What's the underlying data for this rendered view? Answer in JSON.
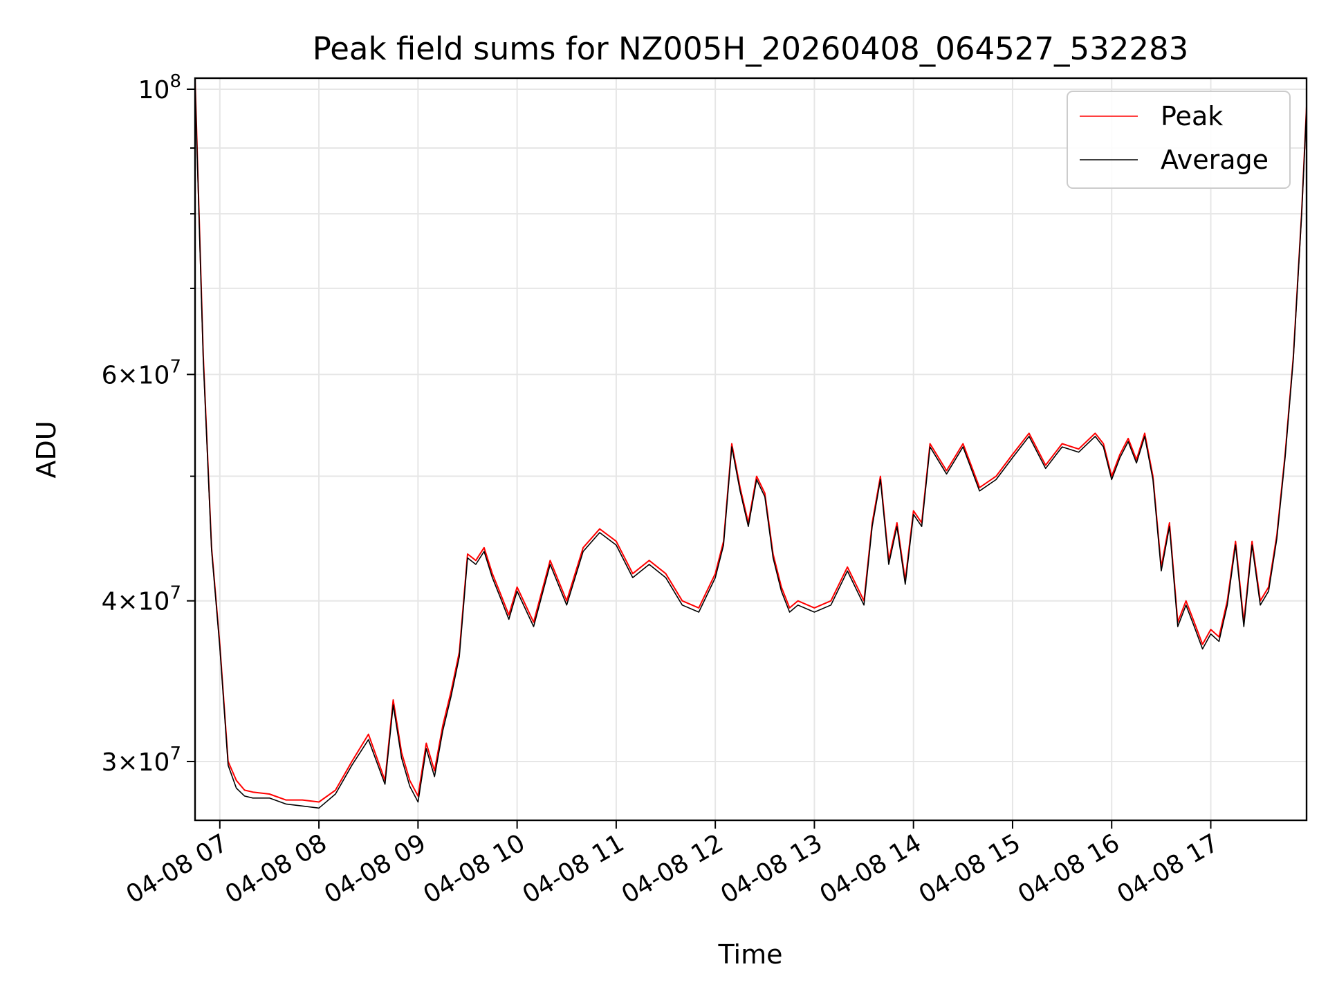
{
  "chart_data": {
    "type": "line",
    "title": "Peak field sums for NZ005H_20260408_064527_532283",
    "xlabel": "Time",
    "ylabel": "ADU",
    "yscale": "log",
    "grid": true,
    "legend_position": "top-right",
    "xlim": [
      "2026-04-08 06:45",
      "2026-04-08 17:58"
    ],
    "ylim": [
      27000000,
      102000000
    ],
    "x_ticks": [
      {
        "value": "2026-04-08 07:00",
        "label": "04-08 07"
      },
      {
        "value": "2026-04-08 08:00",
        "label": "04-08 08"
      },
      {
        "value": "2026-04-08 09:00",
        "label": "04-08 09"
      },
      {
        "value": "2026-04-08 10:00",
        "label": "04-08 10"
      },
      {
        "value": "2026-04-08 11:00",
        "label": "04-08 11"
      },
      {
        "value": "2026-04-08 12:00",
        "label": "04-08 12"
      },
      {
        "value": "2026-04-08 13:00",
        "label": "04-08 13"
      },
      {
        "value": "2026-04-08 14:00",
        "label": "04-08 14"
      },
      {
        "value": "2026-04-08 15:00",
        "label": "04-08 15"
      },
      {
        "value": "2026-04-08 16:00",
        "label": "04-08 16"
      },
      {
        "value": "2026-04-08 17:00",
        "label": "04-08 17"
      }
    ],
    "y_ticks": [
      {
        "value": 30000000,
        "base": "3",
        "exp": "7",
        "mantissa": true
      },
      {
        "value": 40000000,
        "base": "4",
        "exp": "7",
        "mantissa": true
      },
      {
        "value": 60000000,
        "base": "6",
        "exp": "7",
        "mantissa": true
      },
      {
        "value": 100000000,
        "base": "10",
        "exp": "8",
        "mantissa": false
      }
    ],
    "y_minor_ticks": [
      50000000,
      70000000,
      80000000,
      90000000
    ],
    "series": [
      {
        "name": "Peak",
        "color": "#ff0000",
        "x": [
          "2026-04-08 06:45",
          "2026-04-08 06:50",
          "2026-04-08 06:55",
          "2026-04-08 07:00",
          "2026-04-08 07:05",
          "2026-04-08 07:10",
          "2026-04-08 07:15",
          "2026-04-08 07:20",
          "2026-04-08 07:30",
          "2026-04-08 07:40",
          "2026-04-08 07:50",
          "2026-04-08 08:00",
          "2026-04-08 08:10",
          "2026-04-08 08:20",
          "2026-04-08 08:30",
          "2026-04-08 08:40",
          "2026-04-08 08:45",
          "2026-04-08 08:50",
          "2026-04-08 08:55",
          "2026-04-08 09:00",
          "2026-04-08 09:05",
          "2026-04-08 09:10",
          "2026-04-08 09:15",
          "2026-04-08 09:20",
          "2026-04-08 09:25",
          "2026-04-08 09:30",
          "2026-04-08 09:35",
          "2026-04-08 09:40",
          "2026-04-08 09:45",
          "2026-04-08 09:50",
          "2026-04-08 09:55",
          "2026-04-08 10:00",
          "2026-04-08 10:10",
          "2026-04-08 10:20",
          "2026-04-08 10:30",
          "2026-04-08 10:40",
          "2026-04-08 10:50",
          "2026-04-08 11:00",
          "2026-04-08 11:10",
          "2026-04-08 11:20",
          "2026-04-08 11:30",
          "2026-04-08 11:40",
          "2026-04-08 11:50",
          "2026-04-08 12:00",
          "2026-04-08 12:05",
          "2026-04-08 12:10",
          "2026-04-08 12:15",
          "2026-04-08 12:20",
          "2026-04-08 12:25",
          "2026-04-08 12:30",
          "2026-04-08 12:35",
          "2026-04-08 12:40",
          "2026-04-08 12:45",
          "2026-04-08 12:50",
          "2026-04-08 13:00",
          "2026-04-08 13:10",
          "2026-04-08 13:20",
          "2026-04-08 13:30",
          "2026-04-08 13:35",
          "2026-04-08 13:40",
          "2026-04-08 13:45",
          "2026-04-08 13:50",
          "2026-04-08 13:55",
          "2026-04-08 14:00",
          "2026-04-08 14:05",
          "2026-04-08 14:10",
          "2026-04-08 14:20",
          "2026-04-08 14:30",
          "2026-04-08 14:40",
          "2026-04-08 14:50",
          "2026-04-08 15:00",
          "2026-04-08 15:10",
          "2026-04-08 15:20",
          "2026-04-08 15:30",
          "2026-04-08 15:40",
          "2026-04-08 15:50",
          "2026-04-08 15:55",
          "2026-04-08 16:00",
          "2026-04-08 16:05",
          "2026-04-08 16:10",
          "2026-04-08 16:15",
          "2026-04-08 16:20",
          "2026-04-08 16:25",
          "2026-04-08 16:30",
          "2026-04-08 16:35",
          "2026-04-08 16:40",
          "2026-04-08 16:45",
          "2026-04-08 16:50",
          "2026-04-08 16:55",
          "2026-04-08 17:00",
          "2026-04-08 17:05",
          "2026-04-08 17:10",
          "2026-04-08 17:15",
          "2026-04-08 17:20",
          "2026-04-08 17:25",
          "2026-04-08 17:30",
          "2026-04-08 17:35",
          "2026-04-08 17:40",
          "2026-04-08 17:45",
          "2026-04-08 17:50",
          "2026-04-08 17:55",
          "2026-04-08 17:58"
        ],
        "values": [
          102000000,
          62000000,
          44000000,
          37000000,
          30000000,
          29000000,
          28500000,
          28400000,
          28300000,
          28000000,
          28000000,
          27900000,
          28500000,
          30000000,
          31500000,
          29000000,
          33500000,
          30500000,
          29000000,
          28200000,
          31000000,
          29500000,
          32000000,
          34000000,
          36500000,
          43500000,
          43000000,
          44000000,
          42000000,
          40500000,
          39000000,
          41000000,
          38500000,
          43000000,
          40000000,
          44000000,
          45500000,
          44500000,
          42000000,
          43000000,
          42000000,
          40000000,
          39500000,
          42000000,
          44500000,
          53000000,
          49000000,
          46000000,
          50000000,
          48500000,
          43500000,
          41000000,
          39500000,
          40000000,
          39500000,
          40000000,
          42500000,
          40000000,
          46000000,
          50000000,
          43000000,
          46000000,
          41500000,
          47000000,
          46000000,
          53000000,
          50500000,
          53000000,
          49000000,
          50000000,
          52000000,
          54000000,
          51000000,
          53000000,
          52500000,
          54000000,
          53000000,
          50000000,
          52000000,
          53500000,
          51500000,
          54000000,
          50000000,
          42500000,
          46000000,
          38500000,
          40000000,
          38500000,
          37000000,
          38000000,
          37500000,
          40000000,
          44500000,
          38500000,
          44500000,
          40000000,
          41000000,
          45000000,
          52000000,
          62000000,
          80000000,
          97000000
        ]
      },
      {
        "name": "Average",
        "color": "#000000",
        "x": [
          "2026-04-08 06:45",
          "2026-04-08 06:50",
          "2026-04-08 06:55",
          "2026-04-08 07:00",
          "2026-04-08 07:05",
          "2026-04-08 07:10",
          "2026-04-08 07:15",
          "2026-04-08 07:20",
          "2026-04-08 07:30",
          "2026-04-08 07:40",
          "2026-04-08 07:50",
          "2026-04-08 08:00",
          "2026-04-08 08:10",
          "2026-04-08 08:20",
          "2026-04-08 08:30",
          "2026-04-08 08:40",
          "2026-04-08 08:45",
          "2026-04-08 08:50",
          "2026-04-08 08:55",
          "2026-04-08 09:00",
          "2026-04-08 09:05",
          "2026-04-08 09:10",
          "2026-04-08 09:15",
          "2026-04-08 09:20",
          "2026-04-08 09:25",
          "2026-04-08 09:30",
          "2026-04-08 09:35",
          "2026-04-08 09:40",
          "2026-04-08 09:45",
          "2026-04-08 09:50",
          "2026-04-08 09:55",
          "2026-04-08 10:00",
          "2026-04-08 10:10",
          "2026-04-08 10:20",
          "2026-04-08 10:30",
          "2026-04-08 10:40",
          "2026-04-08 10:50",
          "2026-04-08 11:00",
          "2026-04-08 11:10",
          "2026-04-08 11:20",
          "2026-04-08 11:30",
          "2026-04-08 11:40",
          "2026-04-08 11:50",
          "2026-04-08 12:00",
          "2026-04-08 12:05",
          "2026-04-08 12:10",
          "2026-04-08 12:15",
          "2026-04-08 12:20",
          "2026-04-08 12:25",
          "2026-04-08 12:30",
          "2026-04-08 12:35",
          "2026-04-08 12:40",
          "2026-04-08 12:45",
          "2026-04-08 12:50",
          "2026-04-08 13:00",
          "2026-04-08 13:10",
          "2026-04-08 13:20",
          "2026-04-08 13:30",
          "2026-04-08 13:35",
          "2026-04-08 13:40",
          "2026-04-08 13:45",
          "2026-04-08 13:50",
          "2026-04-08 13:55",
          "2026-04-08 14:00",
          "2026-04-08 14:05",
          "2026-04-08 14:10",
          "2026-04-08 14:20",
          "2026-04-08 14:30",
          "2026-04-08 14:40",
          "2026-04-08 14:50",
          "2026-04-08 15:00",
          "2026-04-08 15:10",
          "2026-04-08 15:20",
          "2026-04-08 15:30",
          "2026-04-08 15:40",
          "2026-04-08 15:50",
          "2026-04-08 15:55",
          "2026-04-08 16:00",
          "2026-04-08 16:05",
          "2026-04-08 16:10",
          "2026-04-08 16:15",
          "2026-04-08 16:20",
          "2026-04-08 16:25",
          "2026-04-08 16:30",
          "2026-04-08 16:35",
          "2026-04-08 16:40",
          "2026-04-08 16:45",
          "2026-04-08 16:50",
          "2026-04-08 16:55",
          "2026-04-08 17:00",
          "2026-04-08 17:05",
          "2026-04-08 17:10",
          "2026-04-08 17:15",
          "2026-04-08 17:20",
          "2026-04-08 17:25",
          "2026-04-08 17:30",
          "2026-04-08 17:35",
          "2026-04-08 17:40",
          "2026-04-08 17:45",
          "2026-04-08 17:50",
          "2026-04-08 17:55",
          "2026-04-08 17:58"
        ],
        "values": [
          101000000,
          61500000,
          43800000,
          36800000,
          29800000,
          28600000,
          28200000,
          28100000,
          28100000,
          27800000,
          27700000,
          27600000,
          28300000,
          29800000,
          31200000,
          28800000,
          33200000,
          30200000,
          28700000,
          27900000,
          30700000,
          29200000,
          31700000,
          33700000,
          36200000,
          43200000,
          42700000,
          43700000,
          41700000,
          40200000,
          38700000,
          40700000,
          38200000,
          42700000,
          39700000,
          43700000,
          45200000,
          44200000,
          41700000,
          42700000,
          41700000,
          39700000,
          39200000,
          41700000,
          44200000,
          52700000,
          48700000,
          45700000,
          49700000,
          48200000,
          43200000,
          40700000,
          39200000,
          39700000,
          39200000,
          39700000,
          42200000,
          39700000,
          45700000,
          49700000,
          42700000,
          45700000,
          41200000,
          46700000,
          45700000,
          52700000,
          50200000,
          52700000,
          48700000,
          49700000,
          51700000,
          53700000,
          50700000,
          52700000,
          52200000,
          53700000,
          52700000,
          49700000,
          51700000,
          53200000,
          51200000,
          53700000,
          49700000,
          42200000,
          45700000,
          38200000,
          39700000,
          38200000,
          36700000,
          37700000,
          37200000,
          39700000,
          44200000,
          38200000,
          44200000,
          39700000,
          40700000,
          44700000,
          51700000,
          61700000,
          79700000,
          96500000
        ]
      }
    ]
  }
}
